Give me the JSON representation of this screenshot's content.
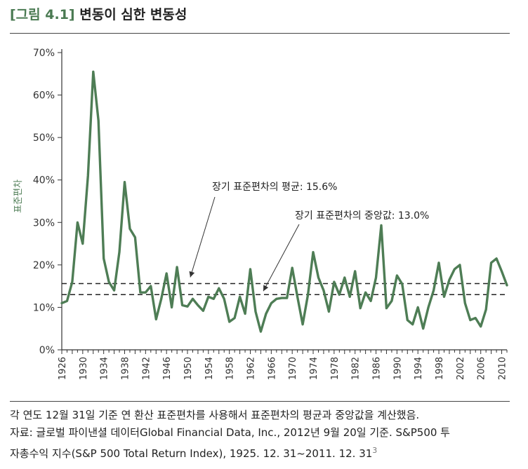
{
  "figure": {
    "tag": "[그림 4.1]",
    "title": "변동이 심한 변동성"
  },
  "caption": {
    "line1": "각 연도 12월 31일 기준 연 환산 표준편차를 사용해서 표준편차의 평균과 중앙값을 계산했음.",
    "line2": "자료: 글로벌 파이낸셜 데이터Global Financial Data, Inc., 2012년 9월 20일 기준. S&P500 투",
    "line3": "자총수익 지수(S&P 500 Total Return Index), 1925. 12. 31~2011. 12. 31",
    "footnote": "3"
  },
  "chart_data": {
    "type": "line",
    "title": "",
    "xlabel": "",
    "ylabel": "표준편차",
    "xlim": [
      1926,
      2011
    ],
    "ylim": [
      0,
      70
    ],
    "x_ticks": [
      1926,
      1930,
      1934,
      1938,
      1942,
      1946,
      1950,
      1954,
      1958,
      1962,
      1966,
      1970,
      1974,
      1978,
      1982,
      1986,
      1990,
      1994,
      1998,
      2002,
      2006,
      2010
    ],
    "y_ticks": [
      0,
      10,
      20,
      30,
      40,
      50,
      60,
      70
    ],
    "y_tick_labels": [
      "0%",
      "10%",
      "20%",
      "30%",
      "40%",
      "50%",
      "60%",
      "70%"
    ],
    "grid": false,
    "series_color": "#4e7d55",
    "x": [
      1926,
      1927,
      1928,
      1929,
      1930,
      1931,
      1932,
      1933,
      1934,
      1935,
      1936,
      1937,
      1938,
      1939,
      1940,
      1941,
      1942,
      1943,
      1944,
      1945,
      1946,
      1947,
      1948,
      1949,
      1950,
      1951,
      1952,
      1953,
      1954,
      1955,
      1956,
      1957,
      1958,
      1959,
      1960,
      1961,
      1962,
      1963,
      1964,
      1965,
      1966,
      1967,
      1968,
      1969,
      1970,
      1971,
      1972,
      1973,
      1974,
      1975,
      1976,
      1977,
      1978,
      1979,
      1980,
      1981,
      1982,
      1983,
      1984,
      1985,
      1986,
      1987,
      1988,
      1989,
      1990,
      1991,
      1992,
      1993,
      1994,
      1995,
      1996,
      1997,
      1998,
      1999,
      2000,
      2001,
      2002,
      2003,
      2004,
      2005,
      2006,
      2007,
      2008,
      2009,
      2010,
      2011
    ],
    "values": [
      11,
      11.5,
      16,
      30,
      25,
      41,
      65.5,
      54,
      21.5,
      16,
      14,
      23,
      39.5,
      28.5,
      26.5,
      13.5,
      13.5,
      15,
      7.2,
      12,
      18,
      10,
      19.5,
      10.5,
      10.2,
      12,
      10.5,
      9.2,
      12.5,
      12,
      14.5,
      12,
      6.6,
      7.5,
      12.5,
      8.5,
      19,
      9,
      4.3,
      8.5,
      11,
      12,
      12.2,
      12.2,
      19.3,
      12.5,
      6,
      13,
      23,
      17,
      14,
      9,
      16,
      13,
      17,
      12.5,
      18.5,
      9.8,
      13.5,
      11.5,
      17,
      29.3,
      9.8,
      11.5,
      17.5,
      15.5,
      7,
      6,
      10,
      5,
      10,
      14,
      20.5,
      12.5,
      16.5,
      19,
      20,
      11,
      7,
      7.5,
      5.5,
      9.5,
      20.5,
      21.5,
      18.5,
      15.2
    ],
    "reference_lines": [
      {
        "label": "장기 표준편차의 평균: 15.6%",
        "value": 15.6
      },
      {
        "label": "장기 표준편차의 중앙값: 13.0%",
        "value": 13.0
      }
    ]
  }
}
